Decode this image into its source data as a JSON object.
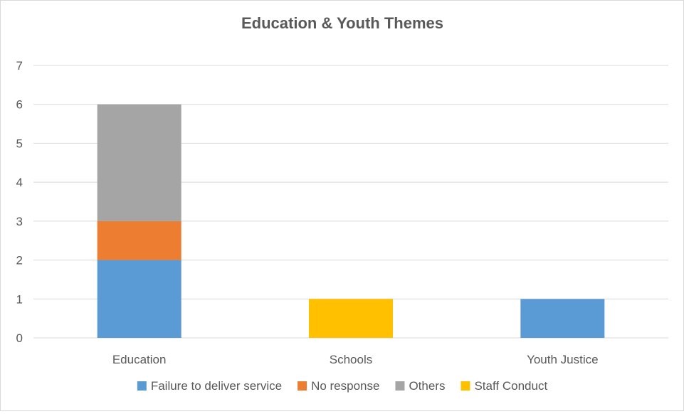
{
  "chart_data": {
    "type": "bar",
    "stacked": true,
    "title": "Education & Youth Themes",
    "xlabel": "",
    "ylabel": "",
    "categories": [
      "Education",
      "Schools",
      "Youth Justice"
    ],
    "ylim": [
      0,
      7
    ],
    "yticks": [
      0,
      1,
      2,
      3,
      4,
      5,
      6,
      7
    ],
    "grid": true,
    "legend_position": "bottom",
    "series": [
      {
        "name": "Failure to deliver service",
        "color": "#5b9bd5",
        "values": [
          2,
          0,
          1
        ]
      },
      {
        "name": "No response",
        "color": "#ed7d31",
        "values": [
          1,
          0,
          0
        ]
      },
      {
        "name": "Others",
        "color": "#a5a5a5",
        "values": [
          3,
          0,
          0
        ]
      },
      {
        "name": "Staff Conduct",
        "color": "#ffc000",
        "values": [
          0,
          1,
          0
        ]
      }
    ]
  }
}
